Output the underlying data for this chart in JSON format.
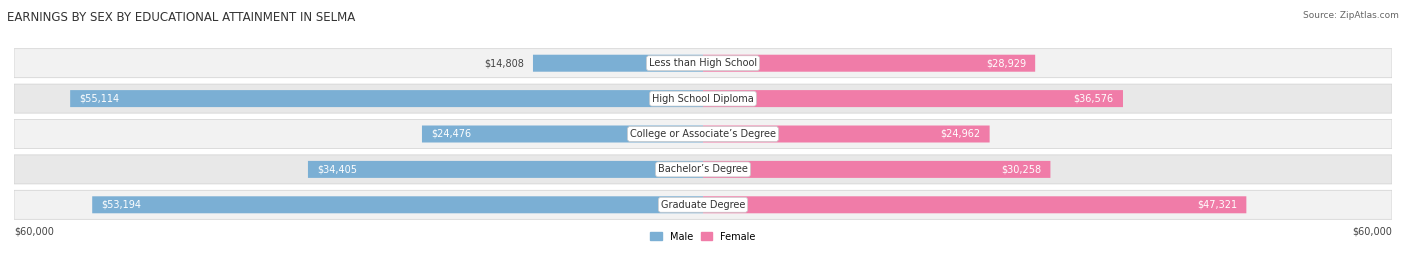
{
  "title": "EARNINGS BY SEX BY EDUCATIONAL ATTAINMENT IN SELMA",
  "source": "Source: ZipAtlas.com",
  "categories": [
    "Less than High School",
    "High School Diploma",
    "College or Associate’s Degree",
    "Bachelor’s Degree",
    "Graduate Degree"
  ],
  "male_values": [
    14808,
    55114,
    24476,
    34405,
    53194
  ],
  "female_values": [
    28929,
    36576,
    24962,
    30258,
    47321
  ],
  "male_color": "#7bafd4",
  "female_color": "#f07ca8",
  "row_bg_color_light": "#f2f2f2",
  "row_bg_color_dark": "#e8e8e8",
  "row_border_color": "#d0d0d0",
  "max_value": 60000,
  "xlabel_left": "$60,000",
  "xlabel_right": "$60,000",
  "legend_male": "Male",
  "legend_female": "Female",
  "title_fontsize": 8.5,
  "source_fontsize": 6.5,
  "label_fontsize": 7.0,
  "value_fontsize": 7.0,
  "category_fontsize": 7.0
}
